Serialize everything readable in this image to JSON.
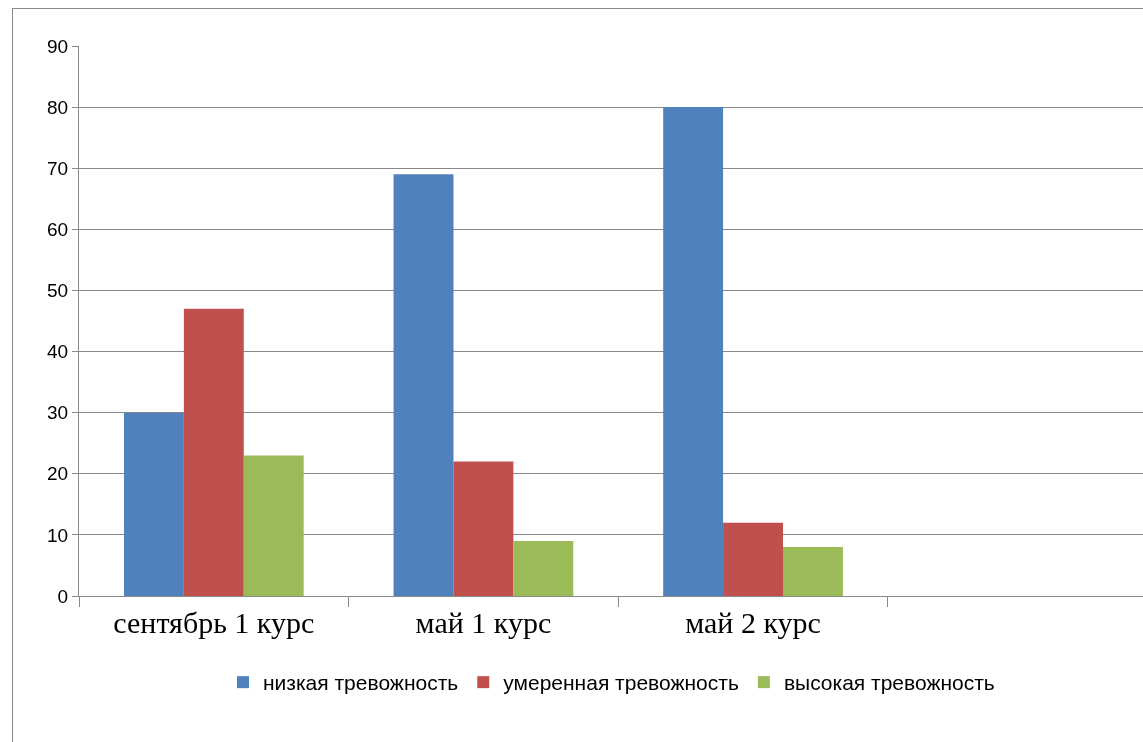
{
  "chart_data": {
    "type": "bar",
    "categories": [
      "сентябрь 1 курс",
      "май 1 курс",
      "май 2 курс",
      null
    ],
    "series": [
      {
        "name": "низкая тревожность",
        "color": "#4f81bd",
        "values": [
          30,
          69,
          80,
          null
        ]
      },
      {
        "name": "умеренная тревожность",
        "color": "#c0504d",
        "values": [
          47,
          22,
          12,
          null
        ]
      },
      {
        "name": "высокая тревожность",
        "color": "#9bbb59",
        "values": [
          23,
          9,
          8,
          null
        ]
      }
    ],
    "ylim": [
      0,
      90
    ],
    "yticks": [
      0,
      10,
      20,
      30,
      40,
      50,
      60,
      70,
      80,
      90
    ],
    "grid": "y",
    "legend": "bottom"
  }
}
